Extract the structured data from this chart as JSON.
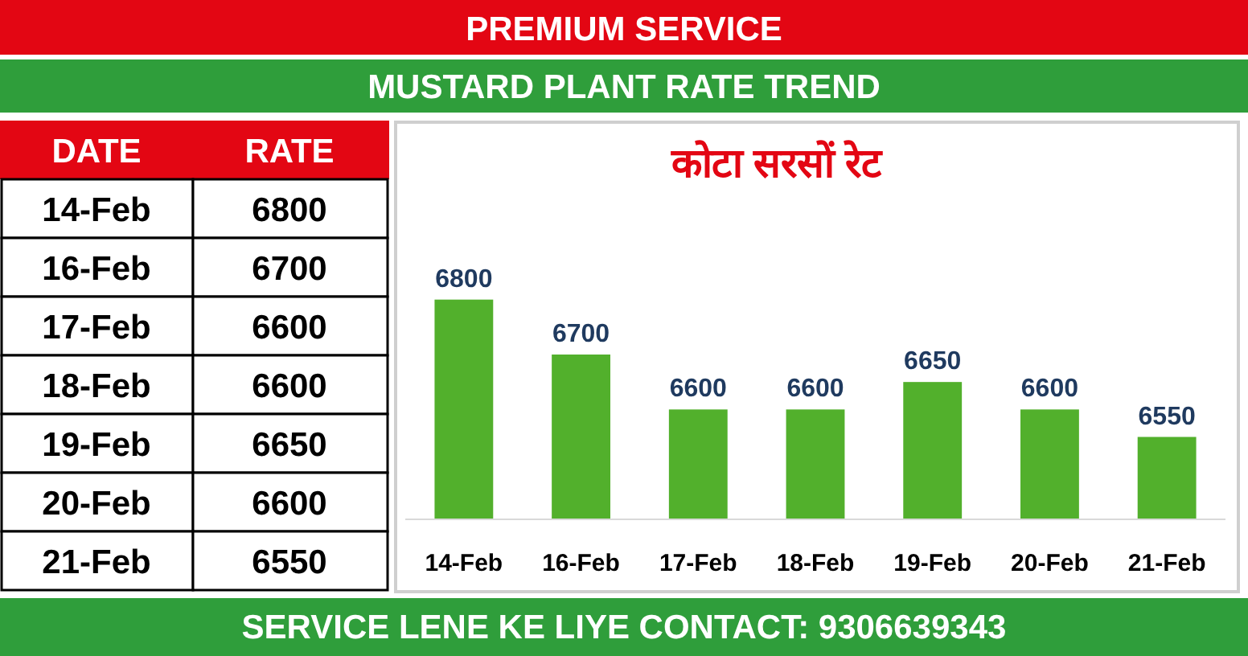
{
  "chart_data": {
    "type": "bar",
    "title": "PREMIUM SERVICE",
    "subtitle": "MUSTARD PLANT RATE TREND",
    "annotations": [
      "कोटा सरसों रेट",
      "SERVICE LENE KE LIYE CONTACT: 9306639343",
      "DATE",
      "RATE"
    ],
    "categories": [
      "14-Feb",
      "16-Feb",
      "17-Feb",
      "18-Feb",
      "19-Feb",
      "20-Feb",
      "21-Feb"
    ],
    "values": [
      6800,
      6700,
      6600,
      6600,
      6650,
      6600,
      6550
    ],
    "value_labels": [
      "6800",
      "6700",
      "6600",
      "6600",
      "6650",
      "6600",
      "6550"
    ],
    "color": "#52b02c",
    "ylim": [
      6400,
      7120
    ],
    "tick_labels": "x"
  }
}
